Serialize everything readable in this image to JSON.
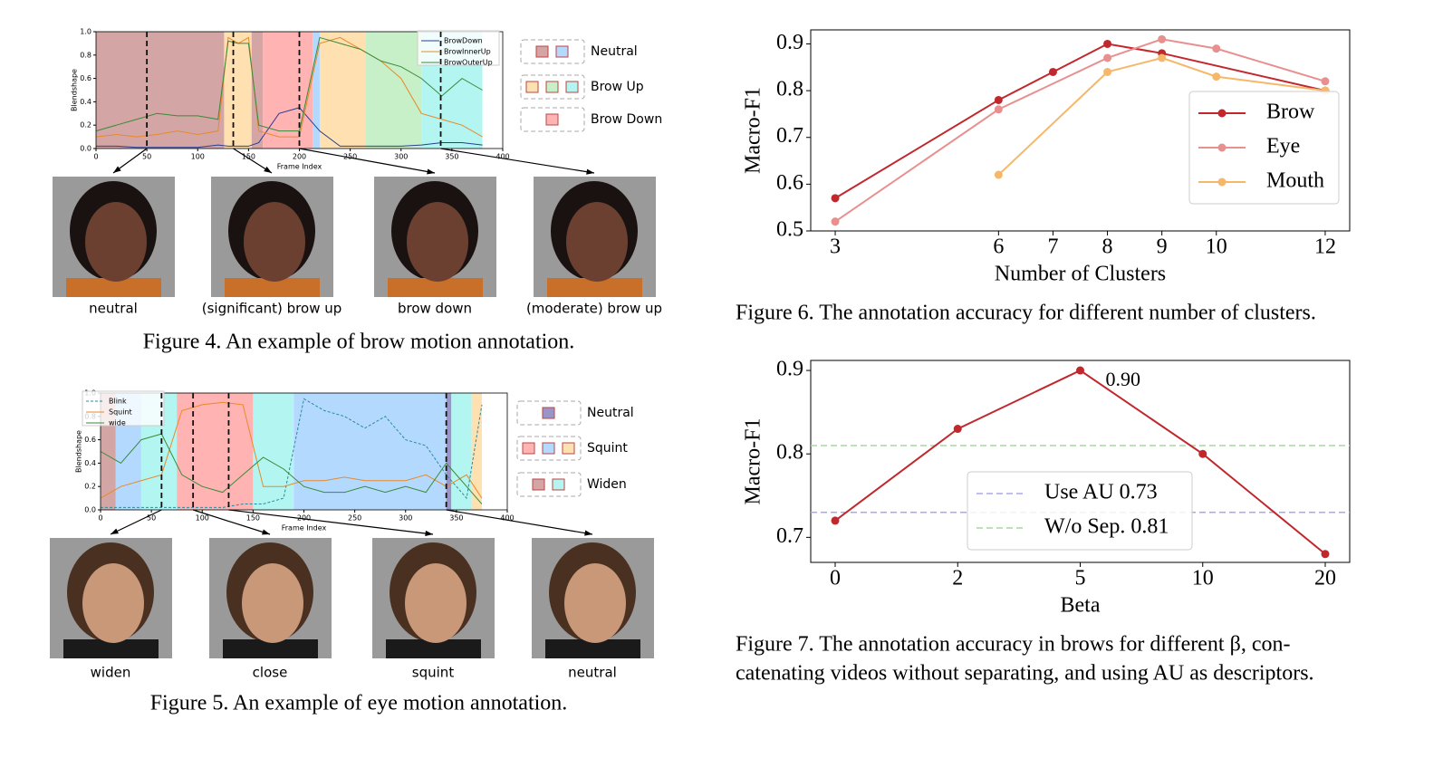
{
  "chart_data": [
    {
      "type": "blendshape",
      "ylabel": "Blendshape",
      "xlabel": "Frame Index",
      "xlim": [
        0,
        400
      ],
      "ylim": [
        0,
        1
      ],
      "xticks": [
        0,
        50,
        100,
        150,
        200,
        250,
        300,
        350,
        400
      ],
      "yticks": [
        {
          "value": 0,
          "label": "0.0"
        },
        0.2,
        0.4,
        0.6,
        0.8,
        {
          "value": 1,
          "label": "1.0"
        }
      ],
      "x": [
        0,
        20,
        40,
        60,
        80,
        100,
        120,
        130,
        140,
        150,
        160,
        180,
        200,
        220,
        240,
        260,
        280,
        300,
        320,
        340,
        360,
        380
      ],
      "series": [
        {
          "name": "BrowDown",
          "color": "#2a3d8f",
          "values": [
            0.02,
            0.02,
            0.01,
            0.01,
            0.01,
            0.01,
            0.03,
            0.02,
            0.02,
            0.02,
            0.05,
            0.3,
            0.35,
            0.15,
            0.02,
            0.02,
            0.02,
            0.02,
            0.03,
            0.05,
            0.05,
            0.03
          ]
        },
        {
          "name": "BrowInnerUp",
          "color": "#e8892a",
          "values": [
            0.1,
            0.12,
            0.1,
            0.12,
            0.15,
            0.12,
            0.15,
            0.95,
            0.9,
            0.95,
            0.15,
            0.1,
            0.1,
            0.9,
            0.95,
            0.85,
            0.75,
            0.6,
            0.3,
            0.25,
            0.2,
            0.1
          ]
        },
        {
          "name": "BrowOuterUp",
          "color": "#3a8a3a",
          "values": [
            0.15,
            0.2,
            0.25,
            0.3,
            0.28,
            0.28,
            0.25,
            0.92,
            0.9,
            0.9,
            0.2,
            0.15,
            0.15,
            0.95,
            0.9,
            0.85,
            0.75,
            0.7,
            0.6,
            0.45,
            0.6,
            0.5
          ]
        }
      ],
      "regions": [
        {
          "start": 0,
          "end": 126,
          "color": "#d4a5a5"
        },
        {
          "start": 126,
          "end": 153,
          "color": "#ffe0b0"
        },
        {
          "start": 153,
          "end": 164,
          "color": "#d4a5a5"
        },
        {
          "start": 164,
          "end": 213,
          "color": "#ffb3b3"
        },
        {
          "start": 213,
          "end": 220,
          "color": "#b3d9ff"
        },
        {
          "start": 220,
          "end": 265,
          "color": "#ffe0b0"
        },
        {
          "start": 265,
          "end": 320,
          "color": "#c8f0c8"
        },
        {
          "start": 320,
          "end": 380,
          "color": "#b3f5f0"
        }
      ],
      "markers": [
        50,
        135,
        200,
        339
      ],
      "category_legend": [
        {
          "name": "Neutral",
          "colors": [
            "#d4a5a5",
            "#b3d9ff"
          ]
        },
        {
          "name": "Brow Up",
          "colors": [
            "#ffe0b0",
            "#c8f0c8",
            "#b3f5f0"
          ]
        },
        {
          "name": "Brow Down",
          "colors": [
            "#ffb3b3"
          ]
        }
      ],
      "images": [
        {
          "label": "neutral"
        },
        {
          "label": "(significant) brow up"
        },
        {
          "label": "brow down"
        },
        {
          "label": "(moderate) brow up"
        }
      ],
      "caption": [
        "Figure 4. An example of brow motion annotation."
      ]
    },
    {
      "type": "blendshape",
      "ylabel": "Blendshape",
      "xlabel": "Frame Index",
      "xlim": [
        0,
        400
      ],
      "ylim": [
        0,
        1
      ],
      "xticks": [
        0,
        50,
        100,
        150,
        200,
        250,
        300,
        350,
        400
      ],
      "yticks": [
        {
          "value": 0,
          "label": "0.0"
        },
        0.2,
        0.4,
        0.6,
        0.8,
        {
          "value": 1,
          "label": "1.0"
        }
      ],
      "x": [
        0,
        20,
        40,
        60,
        80,
        100,
        120,
        140,
        160,
        180,
        200,
        220,
        240,
        260,
        280,
        300,
        320,
        340,
        360,
        375
      ],
      "series": [
        {
          "name": "Blink",
          "color": "#2a8a9a",
          "dashed": true,
          "values": [
            0.02,
            0.02,
            0.02,
            0.02,
            0.02,
            0.02,
            0.02,
            0.05,
            0.05,
            0.1,
            0.95,
            0.85,
            0.8,
            0.7,
            0.8,
            0.6,
            0.55,
            0.3,
            0.1,
            0.9
          ]
        },
        {
          "name": "Squint",
          "color": "#e8892a",
          "values": [
            0.1,
            0.2,
            0.25,
            0.3,
            0.85,
            0.9,
            0.92,
            0.9,
            0.2,
            0.2,
            0.25,
            0.25,
            0.28,
            0.25,
            0.25,
            0.25,
            0.3,
            0.2,
            0.3,
            0.1
          ]
        },
        {
          "name": "wide",
          "color": "#3a8a3a",
          "values": [
            0.5,
            0.4,
            0.6,
            0.65,
            0.3,
            0.2,
            0.15,
            0.3,
            0.45,
            0.35,
            0.2,
            0.15,
            0.15,
            0.2,
            0.15,
            0.2,
            0.15,
            0.4,
            0.2,
            0.05
          ]
        }
      ],
      "regions": [
        {
          "start": 0,
          "end": 15,
          "color": "#d4a5a5"
        },
        {
          "start": 15,
          "end": 40,
          "color": "#b3d9ff"
        },
        {
          "start": 40,
          "end": 75,
          "color": "#b3f5f0"
        },
        {
          "start": 75,
          "end": 150,
          "color": "#ffb3b3"
        },
        {
          "start": 150,
          "end": 190,
          "color": "#b3f5f0"
        },
        {
          "start": 190,
          "end": 340,
          "color": "#b3d9ff"
        },
        {
          "start": 340,
          "end": 345,
          "color": "#9a94c8"
        },
        {
          "start": 345,
          "end": 365,
          "color": "#b3f5f0"
        },
        {
          "start": 365,
          "end": 375,
          "color": "#ffe0b0"
        }
      ],
      "markers": [
        60,
        91,
        126,
        340
      ],
      "category_legend": [
        {
          "name": "Neutral",
          "colors": [
            "#9a94c8"
          ]
        },
        {
          "name": "Squint",
          "colors": [
            "#ffb3b3",
            "#b3d9ff",
            "#ffe0b0"
          ]
        },
        {
          "name": "Widen",
          "colors": [
            "#d4a5a5",
            "#b3f5f0"
          ]
        }
      ],
      "images": [
        {
          "label": "widen"
        },
        {
          "label": "close"
        },
        {
          "label": "squint"
        },
        {
          "label": "neutral"
        }
      ],
      "caption": [
        "Figure 5. An example of eye motion annotation."
      ]
    },
    {
      "type": "line",
      "ylabel": "Macro-F1",
      "xlabel": "Number of Clusters",
      "xlim": [
        2.55,
        12.45
      ],
      "ylim": [
        0.5,
        0.93
      ],
      "xticks": [
        3,
        6,
        7,
        8,
        9,
        10,
        12
      ],
      "yticks": [
        0.5,
        0.6,
        0.7,
        0.8,
        0.9
      ],
      "legend": "upper right",
      "series": [
        {
          "name": "Brow",
          "color": "#c0282d",
          "x": [
            3,
            6,
            7,
            8,
            9,
            12
          ],
          "values": [
            0.57,
            0.78,
            0.84,
            0.9,
            0.88,
            0.8
          ]
        },
        {
          "name": "Eye",
          "color": "#e8908f",
          "x": [
            3,
            6,
            8,
            9,
            10,
            12
          ],
          "values": [
            0.52,
            0.76,
            0.87,
            0.91,
            0.89,
            0.82
          ]
        },
        {
          "name": "Mouth",
          "color": "#f5b86b",
          "x": [
            6,
            8,
            9,
            10,
            12
          ],
          "values": [
            0.62,
            0.84,
            0.87,
            0.83,
            0.8
          ]
        }
      ],
      "caption": [
        "Figure 6. The annotation accuracy for different number of clusters."
      ]
    },
    {
      "type": "line",
      "ylabel": "Macro-F1",
      "xlabel": "Beta",
      "ylim": [
        0.67,
        0.912
      ],
      "yticks": [
        0.7,
        0.8,
        0.9
      ],
      "legend": "lower center",
      "categories": [
        "0",
        "2",
        "5",
        "10",
        "20"
      ],
      "series": [
        {
          "color": "#c0282d",
          "values": [
            0.72,
            0.83,
            0.9,
            0.8,
            0.68
          ]
        }
      ],
      "annotation": {
        "text": "0.90",
        "index": 2
      },
      "reference_lines": [
        {
          "name": "Use AU 0.73",
          "value": 0.73,
          "color": "#a8a8f0"
        },
        {
          "name": "W/o Sep. 0.81",
          "value": 0.81,
          "color": "#a8d8a0"
        }
      ],
      "caption": [
        "Figure 7. The annotation accuracy in brows for different β, con-",
        "catenating videos without separating, and using AU as descriptors."
      ]
    }
  ]
}
